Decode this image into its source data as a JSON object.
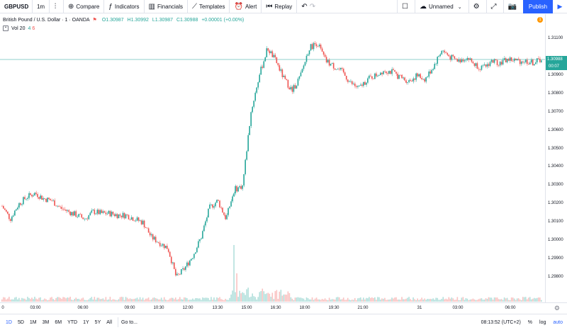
{
  "toolbar": {
    "symbol": "GBPUSD",
    "interval": "1m",
    "chart_type_icon": "candles-icon",
    "compare": "Compare",
    "indicators": "Indicators",
    "financials": "Financials",
    "templates": "Templates",
    "alert": "Alert",
    "replay": "Replay",
    "layout_name": "Unnamed",
    "publish": "Publish"
  },
  "legend": {
    "title": "British Pound / U.S. Dollar · 1 · OANDA",
    "open": "O1.30987",
    "high": "H1.30992",
    "low": "L1.30987",
    "close": "C1.30988",
    "change": "+0.00001 (+0.00%)"
  },
  "volume_legend": {
    "name": "Vol 20",
    "v1": "4",
    "v2": "6"
  },
  "alert_badge": "1",
  "price_scale": {
    "labels": [
      "1.31100",
      "1.30900",
      "1.30800",
      "1.30700",
      "1.30600",
      "1.30500",
      "1.30400",
      "1.30300",
      "1.30200",
      "1.30100",
      "1.30000",
      "1.29900",
      "1.29800"
    ],
    "last_price": "1.30988",
    "countdown": "00:07"
  },
  "time_scale": {
    "labels": [
      "0",
      "03:00",
      "06:00",
      "09:00",
      "10:30",
      "12:00",
      "13:30",
      "15:00",
      "16:30",
      "18:00",
      "19:30",
      "21:00",
      "31",
      "03:00",
      "06:00"
    ]
  },
  "bottom_bar": {
    "ranges": [
      "1D",
      "5D",
      "1M",
      "3M",
      "6M",
      "YTD",
      "1Y",
      "5Y",
      "All"
    ],
    "active_range": "1D",
    "goto": "Go to...",
    "clock": "08:13:52 (UTC+2)",
    "percent": "%",
    "log": "log",
    "auto": "auto"
  },
  "colors": {
    "up": "#26a69a",
    "down": "#ef5350",
    "accent": "#2962ff"
  },
  "chart_data": {
    "type": "candlestick",
    "symbol": "GBPUSD",
    "interval": "1m",
    "ylim": [
      1.2975,
      1.3115
    ],
    "x": [
      "00:00",
      "00:30",
      "01:00",
      "01:30",
      "02:00",
      "02:30",
      "03:00",
      "03:30",
      "04:00",
      "04:30",
      "05:00",
      "05:30",
      "06:00",
      "06:30",
      "07:00",
      "07:30",
      "08:00",
      "08:30",
      "09:00",
      "09:30",
      "10:00",
      "10:30",
      "11:00",
      "11:30",
      "12:00",
      "12:30",
      "13:00",
      "13:30",
      "13:45",
      "14:00",
      "14:30",
      "15:00",
      "15:30",
      "16:00",
      "16:30",
      "17:00",
      "17:30",
      "18:00",
      "18:30",
      "19:00",
      "19:30",
      "20:00",
      "20:30",
      "21:00",
      "21:30",
      "22:00",
      "22:30",
      "23:00",
      "23:30",
      "00:00",
      "00:30",
      "01:00",
      "01:30",
      "02:00",
      "02:30",
      "03:00",
      "03:30",
      "04:00",
      "04:30",
      "05:00",
      "05:30",
      "06:00",
      "06:30",
      "07:00",
      "07:30",
      "08:00"
    ],
    "close": [
      1.3019,
      1.3012,
      1.302,
      1.3024,
      1.3026,
      1.3023,
      1.3022,
      1.3018,
      1.3016,
      1.3014,
      1.3012,
      1.3016,
      1.3015,
      1.3015,
      1.3014,
      1.3014,
      1.3012,
      1.301,
      1.3002,
      1.2999,
      1.2996,
      1.298,
      1.2985,
      1.2992,
      1.3002,
      1.3018,
      1.3022,
      1.3012,
      1.3028,
      1.303,
      1.307,
      1.309,
      1.3105,
      1.3098,
      1.3088,
      1.3082,
      1.309,
      1.3105,
      1.3108,
      1.3098,
      1.3095,
      1.3092,
      1.3086,
      1.3083,
      1.3088,
      1.309,
      1.3093,
      1.3092,
      1.3089,
      1.3087,
      1.309,
      1.3088,
      1.3095,
      1.3104,
      1.31,
      1.3098,
      1.31,
      1.3096,
      1.3094,
      1.3098,
      1.3097,
      1.3099,
      1.3098,
      1.3098,
      1.3097,
      1.3099
    ],
    "volume_spike_time": "13:45",
    "last_price": 1.30988
  }
}
